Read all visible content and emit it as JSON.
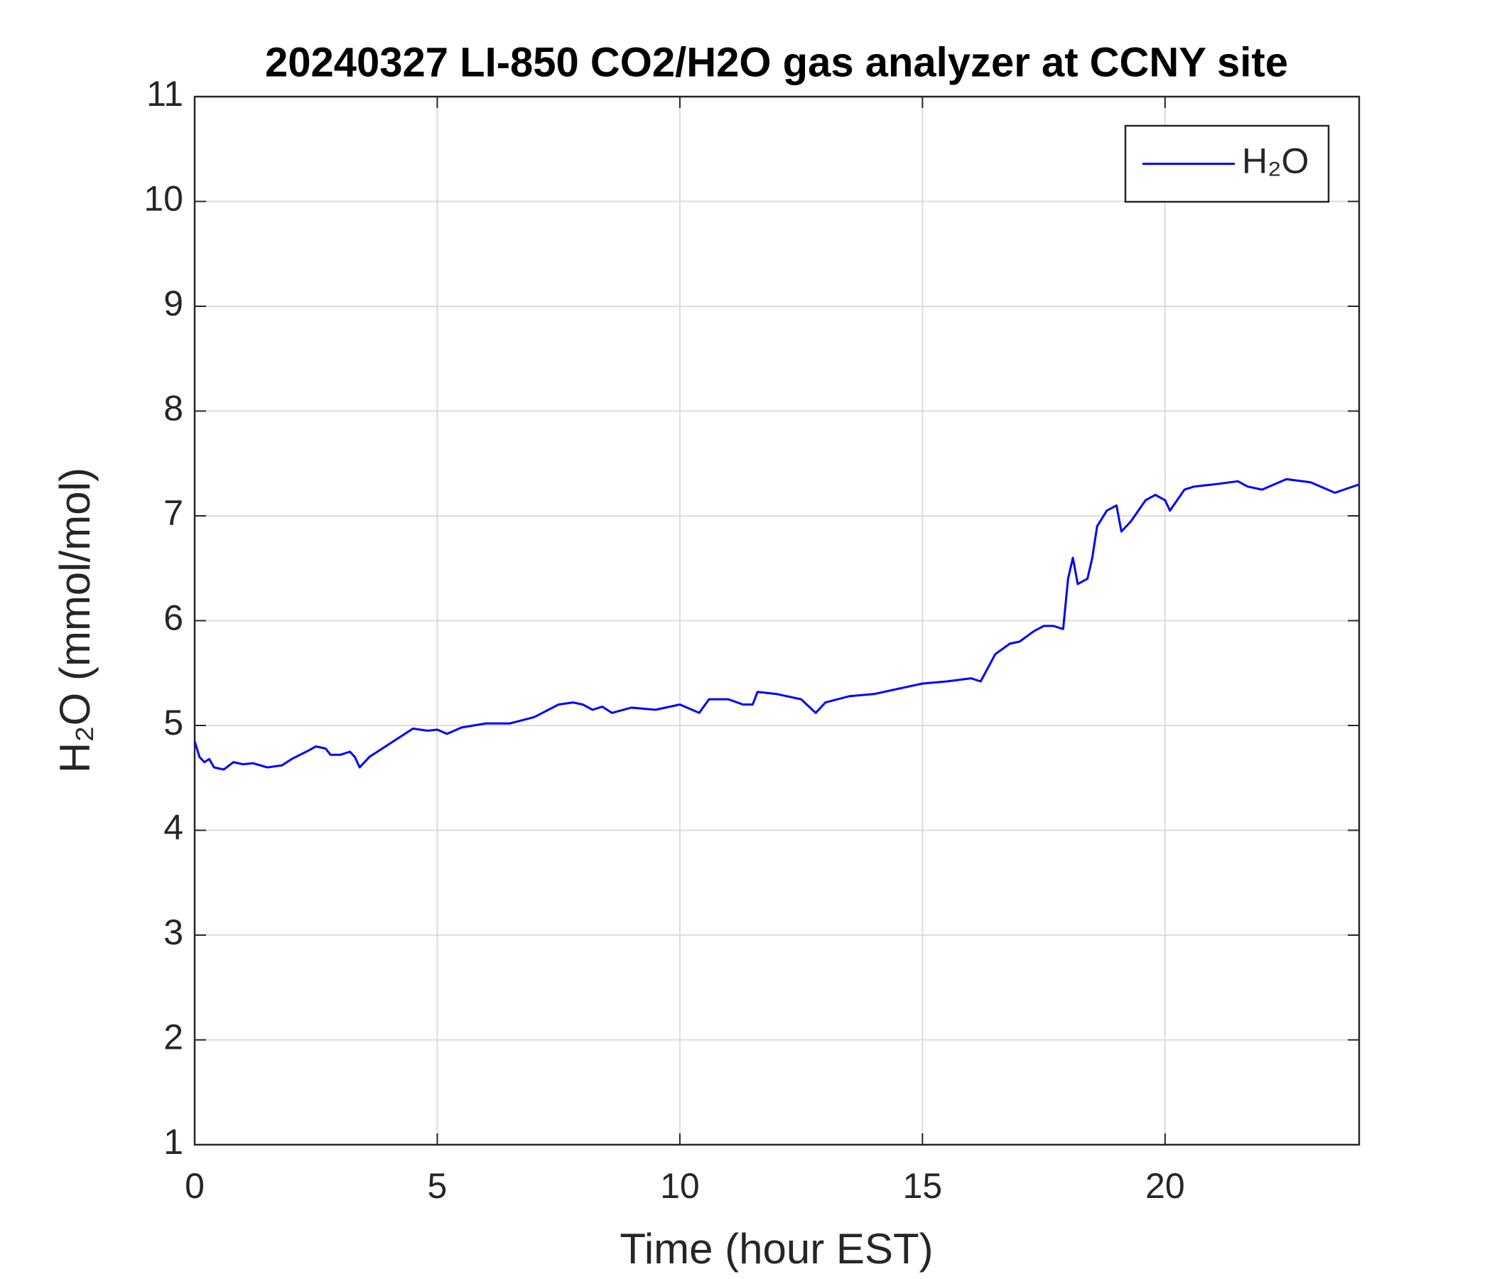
{
  "chart_data": {
    "type": "line",
    "title": "20240327 LI-850 CO2/H2O gas analyzer at CCNY site",
    "xlabel": "Time (hour EST)",
    "ylabel": "H₂O (mmol/mol)",
    "xlim": [
      0,
      24
    ],
    "xticks": [
      0,
      5,
      10,
      15,
      20
    ],
    "ylim": [
      1,
      11
    ],
    "yticks": [
      1,
      2,
      3,
      4,
      5,
      6,
      7,
      8,
      9,
      10,
      11
    ],
    "grid": true,
    "legend": "top-right",
    "x": [
      0,
      0.1,
      0.2,
      0.3,
      0.4,
      0.6,
      0.8,
      1.0,
      1.2,
      1.5,
      1.8,
      2.0,
      2.3,
      2.5,
      2.7,
      2.8,
      3.0,
      3.2,
      3.3,
      3.4,
      3.6,
      4.0,
      4.5,
      4.8,
      5.0,
      5.2,
      5.5,
      6.0,
      6.5,
      7.0,
      7.5,
      7.8,
      8.0,
      8.2,
      8.4,
      8.6,
      9.0,
      9.5,
      10.0,
      10.4,
      10.6,
      11.0,
      11.3,
      11.5,
      11.6,
      12.0,
      12.5,
      12.8,
      13.0,
      13.5,
      14.0,
      14.5,
      15.0,
      15.5,
      16.0,
      16.2,
      16.5,
      16.8,
      17.0,
      17.3,
      17.5,
      17.7,
      17.9,
      18.0,
      18.1,
      18.2,
      18.4,
      18.5,
      18.6,
      18.8,
      19.0,
      19.1,
      19.3,
      19.6,
      19.8,
      20.0,
      20.1,
      20.4,
      20.6,
      21.0,
      21.5,
      21.7,
      22.0,
      22.5,
      23.0,
      23.5,
      24.0
    ],
    "series": [
      {
        "name": "H₂O",
        "color": "#0000ff",
        "values": [
          4.85,
          4.7,
          4.65,
          4.68,
          4.6,
          4.58,
          4.65,
          4.63,
          4.64,
          4.6,
          4.62,
          4.68,
          4.75,
          4.8,
          4.78,
          4.72,
          4.72,
          4.75,
          4.7,
          4.6,
          4.7,
          4.82,
          4.97,
          4.95,
          4.96,
          4.92,
          4.98,
          5.02,
          5.02,
          5.08,
          5.2,
          5.22,
          5.2,
          5.15,
          5.18,
          5.12,
          5.17,
          5.15,
          5.2,
          5.12,
          5.25,
          5.25,
          5.2,
          5.2,
          5.32,
          5.3,
          5.25,
          5.12,
          5.22,
          5.28,
          5.3,
          5.35,
          5.4,
          5.42,
          5.45,
          5.42,
          5.68,
          5.78,
          5.8,
          5.9,
          5.95,
          5.95,
          5.92,
          6.4,
          6.6,
          6.35,
          6.4,
          6.6,
          6.9,
          7.05,
          7.1,
          6.85,
          6.95,
          7.15,
          7.2,
          7.15,
          7.05,
          7.25,
          7.28,
          7.3,
          7.33,
          7.28,
          7.25,
          7.35,
          7.32,
          7.22,
          7.3
        ]
      }
    ]
  }
}
